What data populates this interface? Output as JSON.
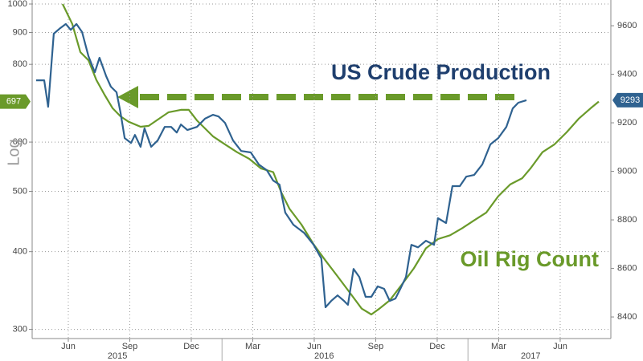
{
  "chart_data": {
    "type": "line",
    "y_label": "Log",
    "ylog": true,
    "ylim": [
      290,
      1015
    ],
    "yticks": [
      300,
      400,
      500,
      600,
      800,
      900,
      1000
    ],
    "y2lim": [
      8311,
      9706
    ],
    "y2ticks": [
      8400,
      8600,
      8800,
      9000,
      9200,
      9400,
      9600
    ],
    "xlim": [
      2015.273,
      2017.626
    ],
    "xticks": [
      {
        "value": 2015.42,
        "label": "Jun"
      },
      {
        "value": 2015.67,
        "label": "Sep"
      },
      {
        "value": 2015.92,
        "label": "Dec"
      },
      {
        "value": 2016.17,
        "label": "Mar"
      },
      {
        "value": 2016.42,
        "label": "Jun"
      },
      {
        "value": 2016.67,
        "label": "Sep"
      },
      {
        "value": 2016.92,
        "label": "Dec"
      },
      {
        "value": 2017.17,
        "label": "Mar"
      },
      {
        "value": 2017.42,
        "label": "Jun"
      }
    ],
    "x_year_labels": [
      {
        "value": 2015.62,
        "label": "2015"
      },
      {
        "value": 2016.46,
        "label": "2016"
      },
      {
        "value": 2017.3,
        "label": "2017"
      }
    ],
    "grid": true,
    "series": [
      {
        "name": "Oil Rig Count",
        "color": "#6a9a2a",
        "axis": "y",
        "x": [
          2015.397,
          2015.436,
          2015.469,
          2015.502,
          2015.534,
          2015.567,
          2015.6,
          2015.632,
          2015.665,
          2015.714,
          2015.747,
          2015.779,
          2015.828,
          2015.878,
          2015.91,
          2015.943,
          2015.976,
          2016.008,
          2016.057,
          2016.106,
          2016.155,
          2016.204,
          2016.253,
          2016.286,
          2016.319,
          2016.368,
          2016.417,
          2016.466,
          2016.515,
          2016.564,
          2016.613,
          2016.652,
          2016.685,
          2016.727,
          2016.776,
          2016.825,
          2016.874,
          2016.923,
          2016.972,
          2017.021,
          2017.07,
          2017.119,
          2017.168,
          2017.217,
          2017.266,
          2017.299,
          2017.348,
          2017.397,
          2017.446,
          2017.495,
          2017.544,
          2017.577
        ],
        "values": [
          1000,
          929,
          837,
          812,
          755,
          715,
          680,
          660,
          647,
          635,
          637,
          650,
          670,
          676,
          676,
          650,
          631,
          613,
          595,
          578,
          564,
          544,
          537,
          498,
          469,
          442,
          411,
          387,
          365,
          344,
          324,
          317,
          324,
          334,
          354,
          376,
          405,
          419,
          425,
          436,
          449,
          462,
          491,
          513,
          525,
          544,
          578,
          595,
          622,
          654,
          680,
          697
        ]
      },
      {
        "name": "US Crude Production",
        "color": "#2f6290",
        "axis": "y2",
        "x": [
          2015.289,
          2015.322,
          2015.338,
          2015.361,
          2015.387,
          2015.41,
          2015.43,
          2015.453,
          2015.476,
          2015.502,
          2015.528,
          2015.547,
          2015.574,
          2015.593,
          2015.616,
          2015.632,
          2015.649,
          2015.675,
          2015.691,
          2015.714,
          2015.73,
          2015.757,
          2015.783,
          2015.812,
          2015.838,
          2015.861,
          2015.878,
          2015.904,
          2015.943,
          2015.976,
          2016.008,
          2016.031,
          2016.057,
          2016.09,
          2016.123,
          2016.162,
          2016.195,
          2016.227,
          2016.253,
          2016.279,
          2016.302,
          2016.335,
          2016.378,
          2016.417,
          2016.449,
          2016.466,
          2016.489,
          2016.515,
          2016.541,
          2016.557,
          2016.58,
          2016.603,
          2016.629,
          2016.652,
          2016.678,
          2016.704,
          2016.727,
          2016.75,
          2016.77,
          2016.793,
          2016.815,
          2016.842,
          2016.874,
          2016.907,
          2016.923,
          2016.956,
          2016.982,
          2017.012,
          2017.038,
          2017.07,
          2017.103,
          2017.136,
          2017.168,
          2017.201,
          2017.227,
          2017.25,
          2017.283
        ],
        "values": [
          9375,
          9375,
          9266,
          9567,
          9590,
          9607,
          9583,
          9607,
          9574,
          9474,
          9408,
          9468,
          9392,
          9349,
          9326,
          9243,
          9137,
          9117,
          9150,
          9101,
          9177,
          9101,
          9127,
          9183,
          9183,
          9160,
          9193,
          9170,
          9183,
          9217,
          9233,
          9226,
          9200,
          9127,
          9084,
          9078,
          9028,
          9005,
          8962,
          8945,
          8830,
          8780,
          8747,
          8698,
          8641,
          8440,
          8466,
          8489,
          8466,
          8450,
          8598,
          8565,
          8483,
          8483,
          8526,
          8516,
          8466,
          8476,
          8516,
          8565,
          8697,
          8687,
          8714,
          8697,
          8807,
          8787,
          8939,
          8939,
          8978,
          8985,
          9028,
          9111,
          9137,
          9183,
          9259,
          9283,
          9293
        ]
      }
    ]
  }
}
